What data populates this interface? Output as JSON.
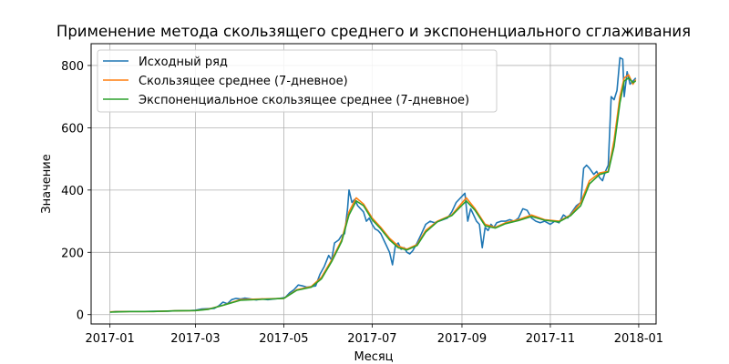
{
  "chart_data": {
    "type": "line",
    "title": "Применение метода скользящего среднего и экспоненциального сглаживания",
    "xlabel": "Месяц",
    "ylabel": "Значение",
    "x_ticks": [
      "2017-01",
      "2017-03",
      "2017-05",
      "2017-07",
      "2017-09",
      "2017-11",
      "2018-01"
    ],
    "y_ticks": [
      0,
      200,
      400,
      600,
      800
    ],
    "xlim": [
      "2016-12-19",
      "2018-01-13"
    ],
    "ylim": [
      -30,
      870
    ],
    "grid": true,
    "legend_position": "top-left",
    "series": [
      {
        "name": "Исходный ряд",
        "color": "#1f77b4",
        "points": [
          [
            "2017-01-01",
            8
          ],
          [
            "2017-01-05",
            10
          ],
          [
            "2017-01-10",
            10
          ],
          [
            "2017-01-15",
            10
          ],
          [
            "2017-01-20",
            10
          ],
          [
            "2017-01-25",
            10
          ],
          [
            "2017-01-31",
            11
          ],
          [
            "2017-02-05",
            11
          ],
          [
            "2017-02-10",
            11
          ],
          [
            "2017-02-15",
            12
          ],
          [
            "2017-02-20",
            13
          ],
          [
            "2017-02-25",
            13
          ],
          [
            "2017-03-01",
            14
          ],
          [
            "2017-03-05",
            18
          ],
          [
            "2017-03-10",
            19
          ],
          [
            "2017-03-14",
            20
          ],
          [
            "2017-03-17",
            28
          ],
          [
            "2017-03-20",
            40
          ],
          [
            "2017-03-23",
            35
          ],
          [
            "2017-03-26",
            48
          ],
          [
            "2017-03-29",
            52
          ],
          [
            "2017-04-01",
            50
          ],
          [
            "2017-04-04",
            53
          ],
          [
            "2017-04-08",
            50
          ],
          [
            "2017-04-12",
            47
          ],
          [
            "2017-04-16",
            50
          ],
          [
            "2017-04-20",
            48
          ],
          [
            "2017-04-24",
            50
          ],
          [
            "2017-04-28",
            52
          ],
          [
            "2017-05-02",
            55
          ],
          [
            "2017-05-05",
            70
          ],
          [
            "2017-05-08",
            80
          ],
          [
            "2017-05-11",
            95
          ],
          [
            "2017-05-14",
            92
          ],
          [
            "2017-05-17",
            88
          ],
          [
            "2017-05-20",
            90
          ],
          [
            "2017-05-23",
            92
          ],
          [
            "2017-05-26",
            130
          ],
          [
            "2017-05-29",
            155
          ],
          [
            "2017-06-01",
            190
          ],
          [
            "2017-06-03",
            175
          ],
          [
            "2017-06-05",
            230
          ],
          [
            "2017-06-08",
            240
          ],
          [
            "2017-06-10",
            255
          ],
          [
            "2017-06-12",
            260
          ],
          [
            "2017-06-14",
            340
          ],
          [
            "2017-06-15",
            400
          ],
          [
            "2017-06-17",
            360
          ],
          [
            "2017-06-19",
            370
          ],
          [
            "2017-06-21",
            350
          ],
          [
            "2017-06-23",
            340
          ],
          [
            "2017-06-25",
            330
          ],
          [
            "2017-06-27",
            300
          ],
          [
            "2017-06-29",
            310
          ],
          [
            "2017-07-01",
            290
          ],
          [
            "2017-07-03",
            275
          ],
          [
            "2017-07-05",
            270
          ],
          [
            "2017-07-07",
            260
          ],
          [
            "2017-07-09",
            240
          ],
          [
            "2017-07-11",
            220
          ],
          [
            "2017-07-13",
            200
          ],
          [
            "2017-07-15",
            160
          ],
          [
            "2017-07-17",
            220
          ],
          [
            "2017-07-19",
            230
          ],
          [
            "2017-07-21",
            210
          ],
          [
            "2017-07-23",
            215
          ],
          [
            "2017-07-25",
            200
          ],
          [
            "2017-07-27",
            195
          ],
          [
            "2017-07-29",
            205
          ],
          [
            "2017-08-01",
            230
          ],
          [
            "2017-08-04",
            260
          ],
          [
            "2017-08-07",
            290
          ],
          [
            "2017-08-10",
            300
          ],
          [
            "2017-08-13",
            295
          ],
          [
            "2017-08-16",
            300
          ],
          [
            "2017-08-19",
            305
          ],
          [
            "2017-08-22",
            310
          ],
          [
            "2017-08-25",
            330
          ],
          [
            "2017-08-28",
            360
          ],
          [
            "2017-09-01",
            380
          ],
          [
            "2017-09-03",
            390
          ],
          [
            "2017-09-05",
            300
          ],
          [
            "2017-09-07",
            340
          ],
          [
            "2017-09-09",
            320
          ],
          [
            "2017-09-11",
            300
          ],
          [
            "2017-09-13",
            290
          ],
          [
            "2017-09-15",
            215
          ],
          [
            "2017-09-17",
            280
          ],
          [
            "2017-09-19",
            270
          ],
          [
            "2017-09-21",
            290
          ],
          [
            "2017-09-23",
            280
          ],
          [
            "2017-09-25",
            295
          ],
          [
            "2017-09-28",
            300
          ],
          [
            "2017-10-01",
            300
          ],
          [
            "2017-10-04",
            305
          ],
          [
            "2017-10-07",
            300
          ],
          [
            "2017-10-10",
            310
          ],
          [
            "2017-10-13",
            340
          ],
          [
            "2017-10-16",
            335
          ],
          [
            "2017-10-19",
            310
          ],
          [
            "2017-10-22",
            300
          ],
          [
            "2017-10-25",
            295
          ],
          [
            "2017-10-28",
            300
          ],
          [
            "2017-11-01",
            290
          ],
          [
            "2017-11-04",
            300
          ],
          [
            "2017-11-07",
            295
          ],
          [
            "2017-11-10",
            320
          ],
          [
            "2017-11-13",
            310
          ],
          [
            "2017-11-16",
            330
          ],
          [
            "2017-11-19",
            350
          ],
          [
            "2017-11-22",
            360
          ],
          [
            "2017-11-24",
            470
          ],
          [
            "2017-11-26",
            480
          ],
          [
            "2017-11-28",
            470
          ],
          [
            "2017-12-01",
            450
          ],
          [
            "2017-12-03",
            460
          ],
          [
            "2017-12-05",
            440
          ],
          [
            "2017-12-07",
            430
          ],
          [
            "2017-12-09",
            460
          ],
          [
            "2017-12-11",
            480
          ],
          [
            "2017-12-13",
            700
          ],
          [
            "2017-12-15",
            690
          ],
          [
            "2017-12-17",
            720
          ],
          [
            "2017-12-19",
            825
          ],
          [
            "2017-12-21",
            820
          ],
          [
            "2017-12-22",
            700
          ],
          [
            "2017-12-24",
            780
          ],
          [
            "2017-12-26",
            740
          ],
          [
            "2017-12-28",
            750
          ],
          [
            "2017-12-30",
            760
          ]
        ]
      },
      {
        "name": "Скользящее среднее (7-дневное)",
        "color": "#ff7f0e",
        "points": [
          [
            "2017-01-01",
            9
          ],
          [
            "2017-01-15",
            10
          ],
          [
            "2017-01-31",
            10
          ],
          [
            "2017-02-15",
            12
          ],
          [
            "2017-03-01",
            13
          ],
          [
            "2017-03-10",
            18
          ],
          [
            "2017-03-20",
            30
          ],
          [
            "2017-04-01",
            48
          ],
          [
            "2017-04-15",
            50
          ],
          [
            "2017-05-01",
            52
          ],
          [
            "2017-05-10",
            80
          ],
          [
            "2017-05-20",
            90
          ],
          [
            "2017-05-27",
            120
          ],
          [
            "2017-06-03",
            175
          ],
          [
            "2017-06-10",
            240
          ],
          [
            "2017-06-15",
            330
          ],
          [
            "2017-06-20",
            375
          ],
          [
            "2017-06-25",
            355
          ],
          [
            "2017-07-01",
            310
          ],
          [
            "2017-07-07",
            280
          ],
          [
            "2017-07-13",
            245
          ],
          [
            "2017-07-19",
            220
          ],
          [
            "2017-07-25",
            210
          ],
          [
            "2017-08-01",
            225
          ],
          [
            "2017-08-07",
            270
          ],
          [
            "2017-08-15",
            300
          ],
          [
            "2017-08-25",
            320
          ],
          [
            "2017-09-04",
            375
          ],
          [
            "2017-09-10",
            340
          ],
          [
            "2017-09-17",
            290
          ],
          [
            "2017-09-24",
            280
          ],
          [
            "2017-10-01",
            295
          ],
          [
            "2017-10-10",
            305
          ],
          [
            "2017-10-19",
            320
          ],
          [
            "2017-10-28",
            305
          ],
          [
            "2017-11-07",
            300
          ],
          [
            "2017-11-15",
            320
          ],
          [
            "2017-11-22",
            360
          ],
          [
            "2017-11-28",
            430
          ],
          [
            "2017-12-05",
            455
          ],
          [
            "2017-12-11",
            460
          ],
          [
            "2017-12-15",
            560
          ],
          [
            "2017-12-19",
            700
          ],
          [
            "2017-12-22",
            760
          ],
          [
            "2017-12-25",
            770
          ],
          [
            "2017-12-28",
            740
          ],
          [
            "2017-12-30",
            755
          ]
        ]
      },
      {
        "name": "Экспоненциальное скользящее среднее (7-дневное)",
        "color": "#2ca02c",
        "points": [
          [
            "2017-01-01",
            8
          ],
          [
            "2017-01-15",
            10
          ],
          [
            "2017-01-31",
            10
          ],
          [
            "2017-02-15",
            12
          ],
          [
            "2017-03-01",
            13
          ],
          [
            "2017-03-10",
            17
          ],
          [
            "2017-03-20",
            30
          ],
          [
            "2017-04-01",
            46
          ],
          [
            "2017-04-15",
            49
          ],
          [
            "2017-05-01",
            52
          ],
          [
            "2017-05-10",
            78
          ],
          [
            "2017-05-20",
            88
          ],
          [
            "2017-05-27",
            115
          ],
          [
            "2017-06-03",
            170
          ],
          [
            "2017-06-10",
            235
          ],
          [
            "2017-06-15",
            320
          ],
          [
            "2017-06-20",
            365
          ],
          [
            "2017-06-25",
            350
          ],
          [
            "2017-07-01",
            305
          ],
          [
            "2017-07-07",
            275
          ],
          [
            "2017-07-13",
            240
          ],
          [
            "2017-07-19",
            215
          ],
          [
            "2017-07-25",
            208
          ],
          [
            "2017-08-01",
            222
          ],
          [
            "2017-08-07",
            265
          ],
          [
            "2017-08-15",
            298
          ],
          [
            "2017-08-25",
            318
          ],
          [
            "2017-09-04",
            365
          ],
          [
            "2017-09-10",
            335
          ],
          [
            "2017-09-17",
            285
          ],
          [
            "2017-09-24",
            278
          ],
          [
            "2017-10-01",
            292
          ],
          [
            "2017-10-10",
            302
          ],
          [
            "2017-10-19",
            315
          ],
          [
            "2017-10-28",
            303
          ],
          [
            "2017-11-07",
            298
          ],
          [
            "2017-11-15",
            318
          ],
          [
            "2017-11-22",
            350
          ],
          [
            "2017-11-28",
            420
          ],
          [
            "2017-12-05",
            450
          ],
          [
            "2017-12-11",
            458
          ],
          [
            "2017-12-15",
            540
          ],
          [
            "2017-12-19",
            680
          ],
          [
            "2017-12-22",
            750
          ],
          [
            "2017-12-25",
            760
          ],
          [
            "2017-12-28",
            745
          ],
          [
            "2017-12-30",
            750
          ]
        ]
      }
    ]
  }
}
